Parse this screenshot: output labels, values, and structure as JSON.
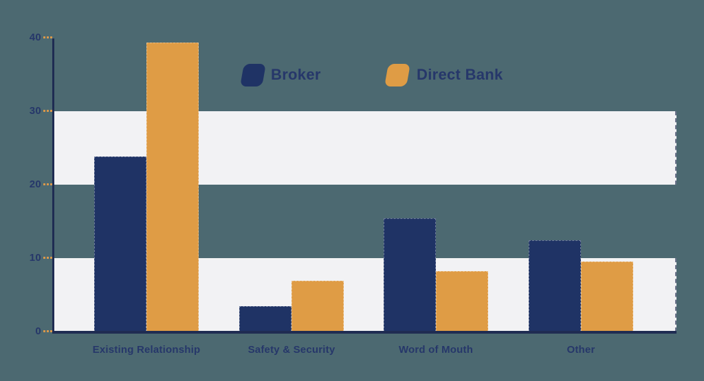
{
  "chart_data": {
    "type": "bar",
    "title": "",
    "xlabel": "",
    "ylabel": "",
    "categories": [
      "Existing Relationship",
      "Safety & Security",
      "Word of Mouth",
      "Other"
    ],
    "series": [
      {
        "name": "Broker",
        "color": "#1f3365",
        "values": [
          23.8,
          3.5,
          15.4,
          12.4
        ]
      },
      {
        "name": "Direct Bank",
        "color": "#df9c45",
        "values": [
          39.3,
          6.9,
          8.2,
          9.5
        ]
      }
    ],
    "ylim": [
      0,
      40
    ],
    "yticks": [
      0,
      10,
      20,
      30,
      40
    ],
    "grid": "alternating horizontal background bands between 0-10 and 20-30",
    "legend_position": "top-center"
  },
  "legend": {
    "items": [
      {
        "label": "Broker",
        "color": "#1f3365"
      },
      {
        "label": "Direct Bank",
        "color": "#df9c45"
      }
    ]
  },
  "colors": {
    "background": "#4c6971",
    "band": "#f2f2f4",
    "axis": "#1f2c52",
    "tick_dash": "#d9984b",
    "text": "#26376a",
    "broker": "#1f3365",
    "direct_bank": "#df9c45"
  }
}
